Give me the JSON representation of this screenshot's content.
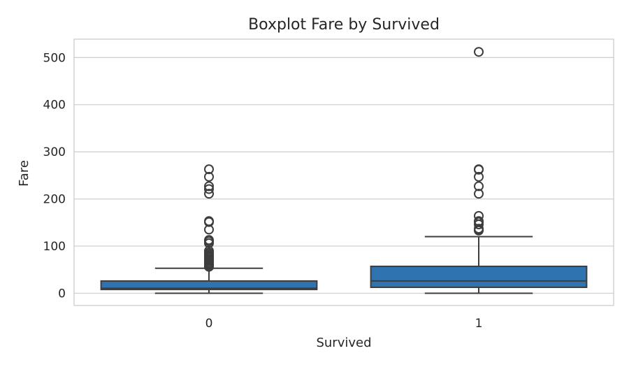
{
  "chart_data": {
    "type": "boxplot",
    "title": "Boxplot Fare by Survived",
    "xlabel": "Survived",
    "ylabel": "Fare",
    "categories": [
      "0",
      "1"
    ],
    "ylim": [
      -26,
      539
    ],
    "yticks": [
      0,
      100,
      200,
      300,
      400,
      500
    ],
    "grid": true,
    "box_color": "#2f74b0",
    "edge_color": "#3d3d3d",
    "boxes": [
      {
        "category": "0",
        "whisker_low": 0,
        "q1": 7.9,
        "median": 10.5,
        "q3": 26,
        "whisker_high": 53,
        "fliers": [
          56,
          59,
          61,
          63,
          66,
          69,
          71,
          73,
          76,
          78,
          80,
          83,
          86,
          90,
          106,
          110,
          113,
          135,
          151,
          153,
          211,
          221,
          227,
          247,
          263
        ]
      },
      {
        "category": "1",
        "whisker_low": 0,
        "q1": 12.5,
        "median": 26,
        "q3": 57,
        "whisker_high": 120,
        "fliers": [
          133,
          135,
          137,
          146,
          151,
          153,
          164,
          211,
          227,
          247,
          262,
          263,
          512
        ]
      }
    ]
  }
}
